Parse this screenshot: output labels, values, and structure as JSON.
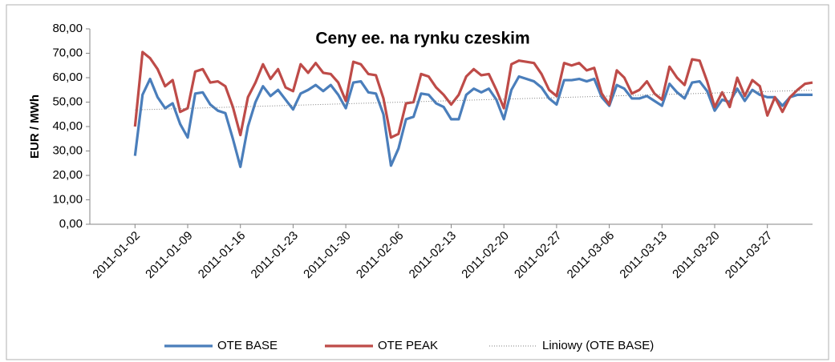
{
  "chart_data": {
    "type": "line",
    "title": "Ceny ee. na rynku czeskim",
    "y_label": "EUR / MWh",
    "x": [
      "2011-01-02",
      "2011-01-03",
      "2011-01-04",
      "2011-01-05",
      "2011-01-06",
      "2011-01-07",
      "2011-01-08",
      "2011-01-09",
      "2011-01-10",
      "2011-01-11",
      "2011-01-12",
      "2011-01-13",
      "2011-01-14",
      "2011-01-15",
      "2011-01-16",
      "2011-01-17",
      "2011-01-18",
      "2011-01-19",
      "2011-01-20",
      "2011-01-21",
      "2011-01-22",
      "2011-01-23",
      "2011-01-24",
      "2011-01-25",
      "2011-01-26",
      "2011-01-27",
      "2011-01-28",
      "2011-01-29",
      "2011-01-30",
      "2011-01-31",
      "2011-02-01",
      "2011-02-02",
      "2011-02-03",
      "2011-02-04",
      "2011-02-05",
      "2011-02-06",
      "2011-02-07",
      "2011-02-08",
      "2011-02-09",
      "2011-02-10",
      "2011-02-11",
      "2011-02-12",
      "2011-02-13",
      "2011-02-14",
      "2011-02-15",
      "2011-02-16",
      "2011-02-17",
      "2011-02-18",
      "2011-02-19",
      "2011-02-20",
      "2011-02-21",
      "2011-02-22",
      "2011-02-23",
      "2011-02-24",
      "2011-02-25",
      "2011-02-26",
      "2011-02-27",
      "2011-02-28",
      "2011-03-01",
      "2011-03-02",
      "2011-03-03",
      "2011-03-04",
      "2011-03-05",
      "2011-03-06",
      "2011-03-07",
      "2011-03-08",
      "2011-03-09",
      "2011-03-10",
      "2011-03-11",
      "2011-03-12",
      "2011-03-13",
      "2011-03-14",
      "2011-03-15",
      "2011-03-16",
      "2011-03-17",
      "2011-03-18",
      "2011-03-19",
      "2011-03-20",
      "2011-03-21",
      "2011-03-22",
      "2011-03-23",
      "2011-03-24",
      "2011-03-25",
      "2011-03-26",
      "2011-03-27",
      "2011-03-28",
      "2011-03-29",
      "2011-03-30",
      "2011-03-31",
      "2011-04-01",
      "2011-04-02"
    ],
    "series": [
      {
        "name": "OTE BASE",
        "color": "#4a7ebb",
        "values": [
          28,
          53,
          59.5,
          52,
          47.5,
          49.5,
          41,
          35.5,
          53.5,
          54,
          49,
          46.5,
          45.5,
          35,
          23.5,
          40,
          50,
          56.5,
          52.5,
          55,
          51,
          47,
          53.5,
          55,
          57,
          54.5,
          57,
          53,
          47.5,
          58,
          58.5,
          54,
          53.5,
          45,
          24,
          31,
          43,
          44,
          53.5,
          53,
          49.5,
          48,
          43,
          43,
          53,
          55.5,
          54,
          55.5,
          51,
          43,
          55,
          60.5,
          59.5,
          58.5,
          56,
          51.5,
          49,
          59,
          59,
          59.5,
          58.5,
          59.5,
          52,
          48.5,
          57,
          55.5,
          51.5,
          51.5,
          52.5,
          50.5,
          48.5,
          57.5,
          54,
          51.5,
          58,
          58.5,
          54.5,
          46.5,
          51,
          50,
          55.5,
          50.5,
          55,
          53,
          52,
          52,
          48.5,
          52,
          53,
          53,
          53
        ]
      },
      {
        "name": "OTE PEAK",
        "color": "#be4b48",
        "values": [
          40,
          70.5,
          68,
          63.5,
          56.5,
          59,
          46,
          47.5,
          62.5,
          63.5,
          58,
          58.5,
          56.5,
          48,
          36.5,
          52,
          58,
          65.5,
          59.5,
          63.5,
          56,
          54.5,
          65.5,
          62,
          66,
          62,
          61.5,
          58,
          50.5,
          66.5,
          65.5,
          61.5,
          61,
          51.5,
          35.5,
          37,
          49.5,
          50,
          61.5,
          60.5,
          56,
          53,
          49,
          53,
          60.5,
          63.5,
          61,
          61.5,
          55,
          47.5,
          65.5,
          67,
          66.5,
          66,
          61.5,
          55,
          52.5,
          66,
          65,
          66,
          63,
          64,
          53.5,
          49,
          63,
          60,
          53.5,
          55,
          58.5,
          53.5,
          51,
          64.5,
          60,
          57,
          67.5,
          67,
          58.5,
          48,
          54,
          48,
          60,
          52.5,
          59,
          56.5,
          44.5,
          52,
          46,
          52,
          55,
          57.5,
          58
        ]
      },
      {
        "name": "Liniowy (OTE BASE)",
        "color": "#7f7f7f",
        "trendline_of": 0
      }
    ],
    "xlim": [
      "2010-12-27",
      "2011-04-02"
    ],
    "xticks": [
      "2011-01-02",
      "2011-01-09",
      "2011-01-16",
      "2011-01-23",
      "2011-01-30",
      "2011-02-06",
      "2011-02-13",
      "2011-02-20",
      "2011-02-27",
      "2011-03-06",
      "2011-03-13",
      "2011-03-20",
      "2011-03-27"
    ],
    "ylim": [
      0,
      80
    ],
    "yticks": [
      {
        "value": 0,
        "label": "0,00"
      },
      {
        "value": 10,
        "label": "10,00"
      },
      {
        "value": 20,
        "label": "20,00"
      },
      {
        "value": 30,
        "label": "30,00"
      },
      {
        "value": 40,
        "label": "40,00"
      },
      {
        "value": 50,
        "label": "50,00"
      },
      {
        "value": 60,
        "label": "60,00"
      },
      {
        "value": 70,
        "label": "70,00"
      },
      {
        "value": 80,
        "label": "80,00"
      }
    ],
    "grid": false,
    "legend": "bottom"
  }
}
